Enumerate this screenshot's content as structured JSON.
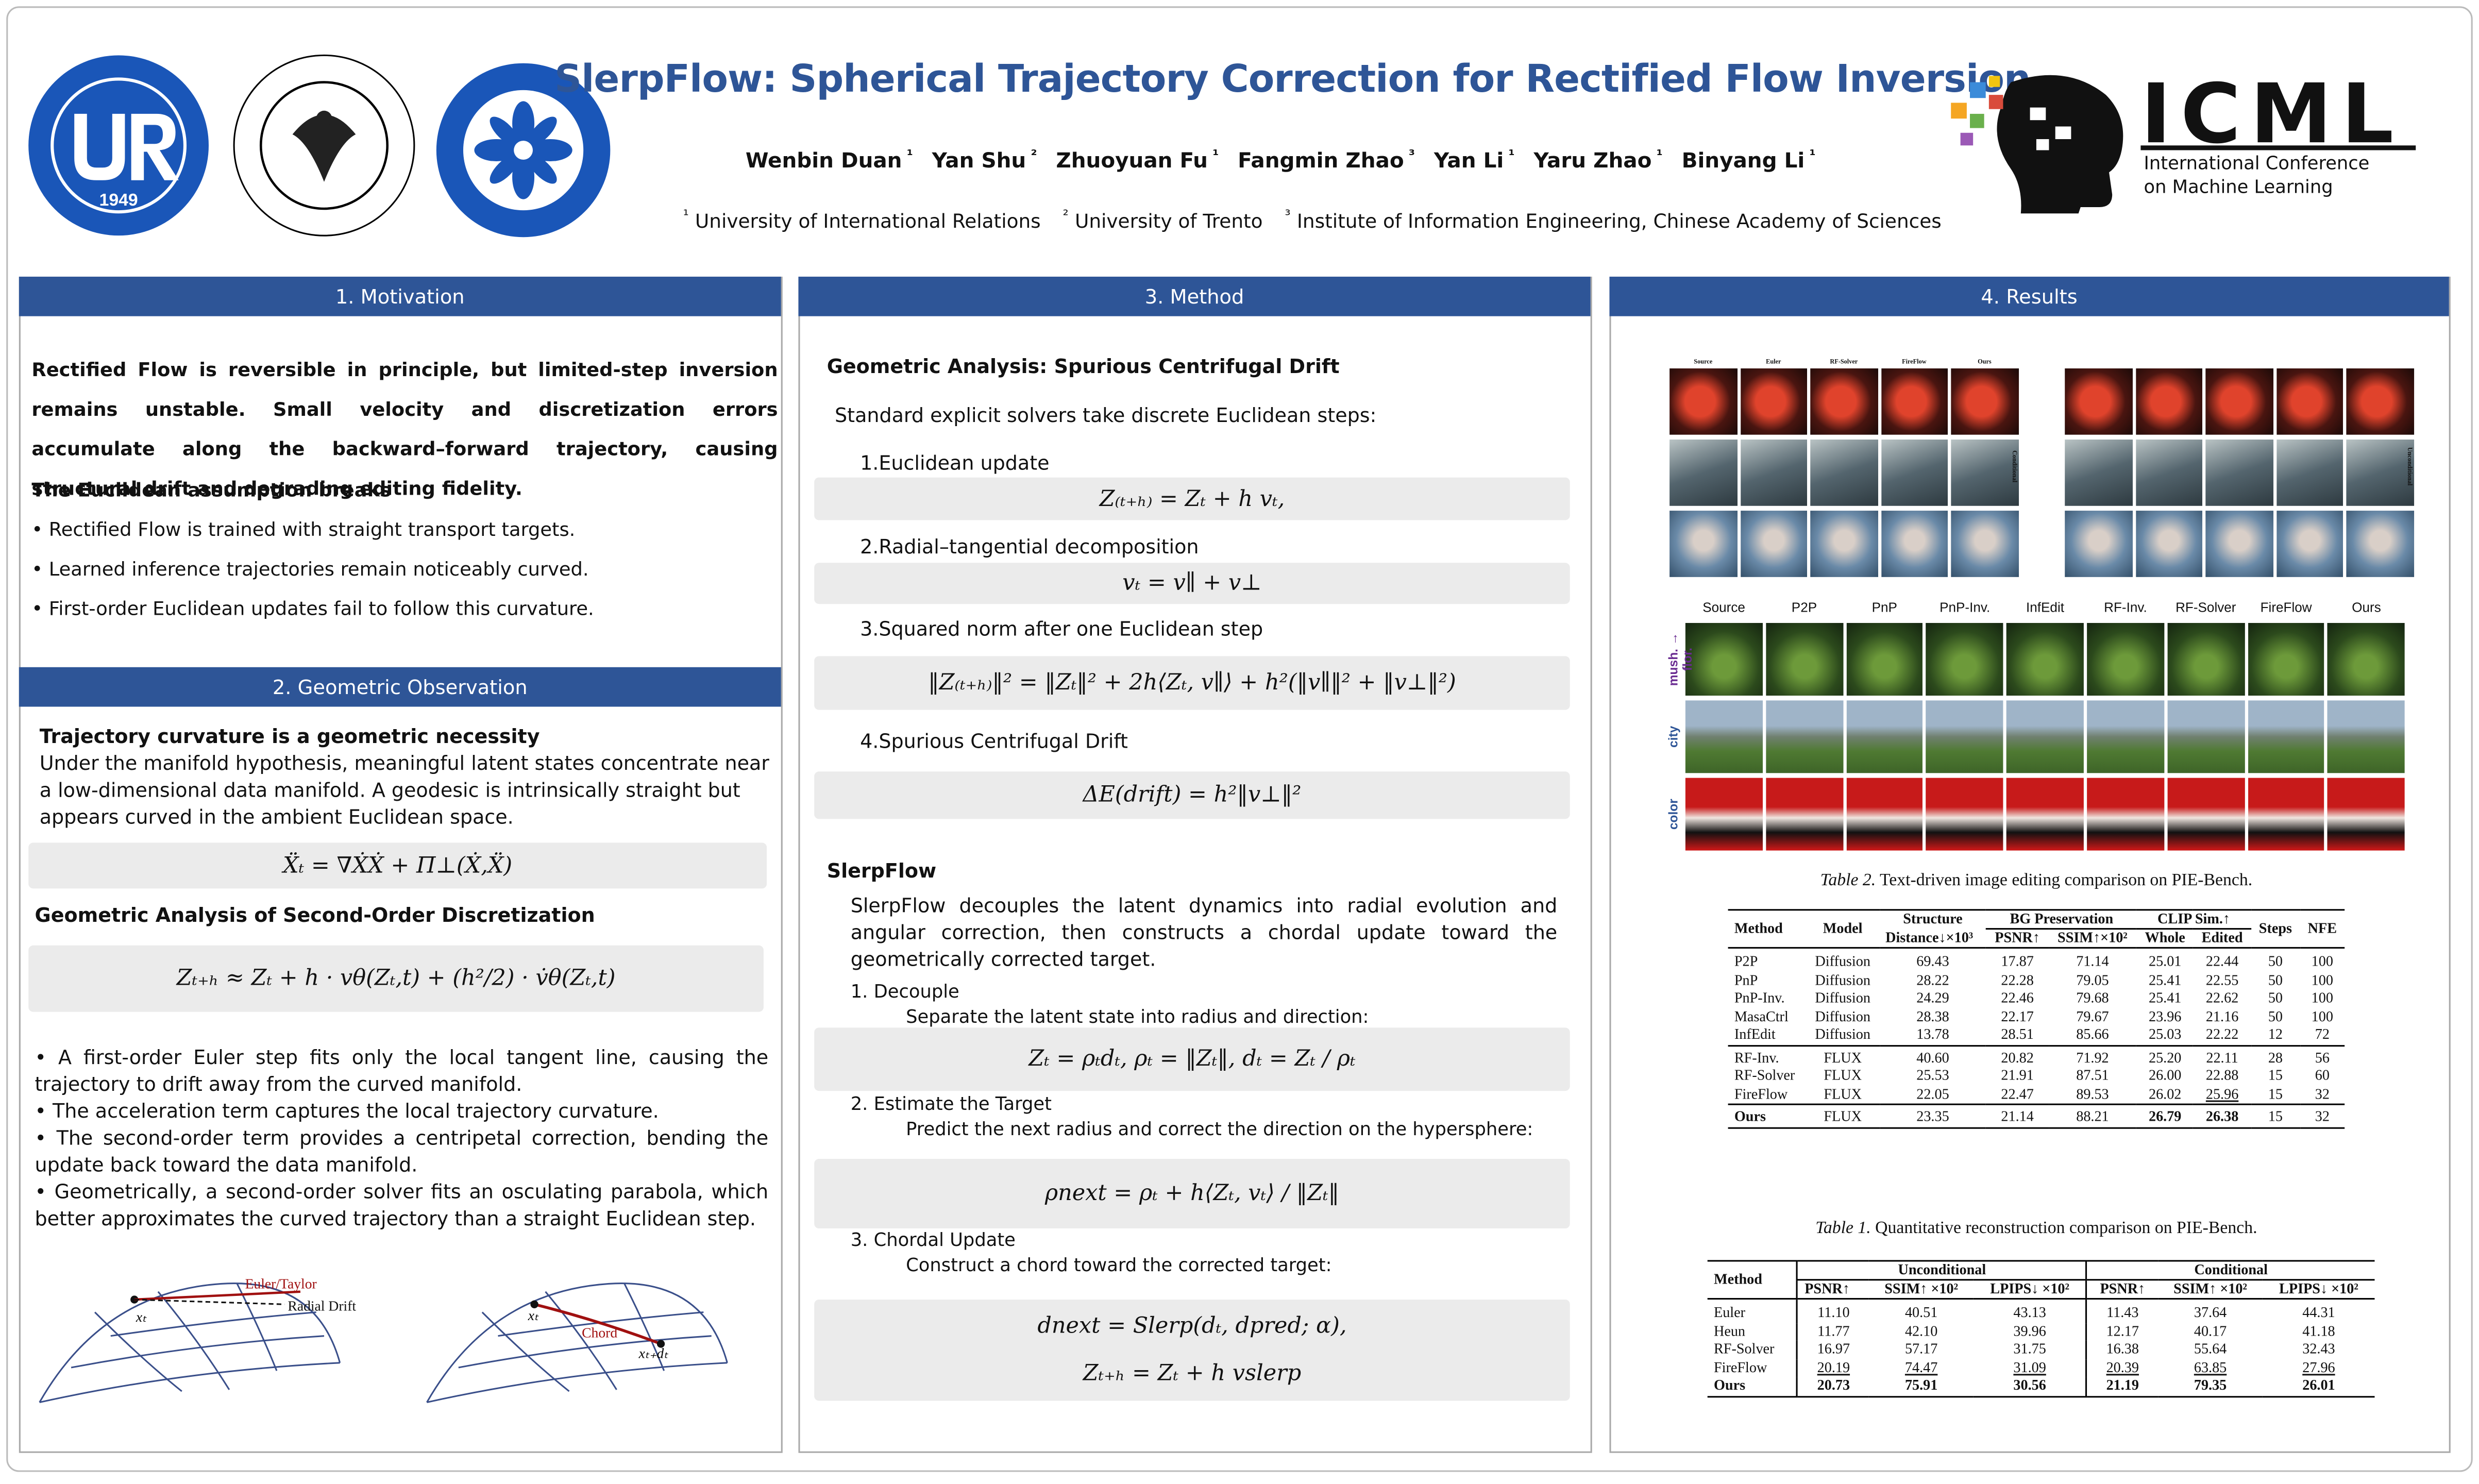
{
  "header": {
    "title": "SlerpFlow: Spherical Trajectory Correction for Rectified Flow Inversion",
    "authors": [
      {
        "name": "Wenbin Duan",
        "sup": "¹"
      },
      {
        "name": "Yan Shu",
        "sup": "²"
      },
      {
        "name": "Zhuoyuan Fu",
        "sup": "¹"
      },
      {
        "name": "Fangmin Zhao",
        "sup": "³"
      },
      {
        "name": "Yan Li",
        "sup": "¹"
      },
      {
        "name": "Yaru Zhao",
        "sup": "¹"
      },
      {
        "name": "Binyang Li",
        "sup": "¹"
      }
    ],
    "affiliations": [
      {
        "sup": "¹",
        "name": "University of International Relations"
      },
      {
        "sup": "²",
        "name": "University of Trento"
      },
      {
        "sup": "³",
        "name": "Institute of Information Engineering, Chinese Academy of Sciences"
      }
    ],
    "logo_year": "1949",
    "conference": {
      "name": "ICML",
      "line1": "International Conference",
      "line2": "on Machine Learning"
    }
  },
  "motivation": {
    "title": "1. Motivation",
    "intro": "Rectified Flow is reversible in principle, but limited-step inversion remains unstable. Small velocity and discretization errors accumulate along the backward–forward trajectory, causing structural drift and degrading editing fidelity.",
    "subtitle": "The Euclidean assumption breaks",
    "bullets": [
      "• Rectified Flow is trained with straight transport targets.",
      "• Learned inference trajectories remain noticeably curved.",
      "• First-order Euclidean updates fail to follow this curvature."
    ]
  },
  "observation": {
    "title": "2. Geometric Observation",
    "heading1": "Trajectory curvature is a geometric necessity",
    "text1": "Under the manifold hypothesis, meaningful latent states concentrate near a low-dimensional data manifold. A geodesic is intrinsically straight but appears curved in the ambient Euclidean space.",
    "eq1": "Ẍₜ = ∇ẊẊ + Π⊥(Ẋ,Ẍ)",
    "heading2": "Geometric Analysis of Second-Order Discretization",
    "eq2": "Zₜ₊ₕ ≈ Zₜ + h · vθ(Zₜ,t) + (h²/2) · v̇θ(Zₜ,t)",
    "bullets": [
      "• A first-order Euler step fits only the local tangent line, causing the trajectory to drift away from the curved manifold.",
      "• The acceleration term captures the local trajectory curvature.",
      "• The second-order term provides a centripetal correction, bending the update back toward the data manifold.",
      "• Geometrically, a second-order solver fits an osculating parabola, which better approximates the curved trajectory than a straight Euclidean step."
    ],
    "figure": {
      "euler": "Euler/Taylor",
      "radial": "Radial Drift",
      "xt": "xₜ",
      "chord": "Chord",
      "xtdt": "xₜ₊dₜ",
      "xt2": "xₜ"
    }
  },
  "method": {
    "title": "3. Method",
    "heading1": "Geometric Analysis: Spurious Centrifugal Drift",
    "intro": "Standard explicit solvers take discrete Euclidean steps:",
    "steps": [
      {
        "label": "1.Euclidean update",
        "eq": "Z₍ₜ₊ₕ₎ = Zₜ + h vₜ,"
      },
      {
        "label": "2.Radial–tangential decomposition",
        "eq": "vₜ = v∥ + v⊥"
      },
      {
        "label": "3.Squared norm after one Euclidean step",
        "eq": "‖Z₍ₜ₊ₕ₎‖² = ‖Zₜ‖² + 2h⟨Zₜ, v∥⟩ + h²(‖v∥‖² + ‖v⊥‖²)"
      },
      {
        "label": "4.Spurious Centrifugal Drift",
        "eq": "ΔE(drift) = h²‖v⊥‖²"
      }
    ],
    "heading2": "SlerpFlow",
    "text2": "SlerpFlow decouples the latent dynamics into radial evolution and angular correction, then constructs a chordal update toward the geometrically corrected target.",
    "parts": [
      {
        "label": "1. Decouple",
        "text": "Separate the latent state into radius and direction:",
        "eq": "Zₜ = ρₜdₜ,  ρₜ = ‖Zₜ‖,  dₜ = Zₜ / ρₜ"
      },
      {
        "label": "2. Estimate the Target",
        "text": "Predict the next radius and correct the direction on the hypersphere:",
        "eq": "ρnext = ρₜ + h⟨Zₜ, vₜ⟩ / ‖Zₜ‖"
      },
      {
        "label": "3. Chordal Update",
        "text": "Construct a chord toward the corrected target:",
        "eq": "dnext = Slerp(dₜ, dpred; α),",
        "eq2": "Zₜ₊ₕ = Zₜ + h vslerp"
      }
    ]
  },
  "results": {
    "title": "4. Results",
    "grid1_columns": [
      "Source",
      "Euler",
      "RF-Solver",
      "FireFlow",
      "Ours"
    ],
    "grid1_side": [
      "Conditional",
      "Unconditional"
    ],
    "grid2_columns": [
      "Source",
      "P2P",
      "PnP",
      "PnP-Inv.",
      "InfEdit",
      "RF-Inv.",
      "RF-Solver",
      "FireFlow",
      "Ours"
    ],
    "grid2_rows": [
      "mush. → flor.",
      "city",
      "color"
    ],
    "table2": {
      "caption_label": "Table 2.",
      "caption": "Text-driven image editing comparison on PIE-Bench.",
      "header_top": [
        "Method",
        "Model",
        "Structure",
        "BG Preservation",
        "CLIP Sim.↑",
        "Steps",
        "NFE"
      ],
      "header_sub": [
        "Distance↓×10³",
        "PSNR↑",
        "SSIM↑×10²",
        "Whole",
        "Edited"
      ],
      "rows": [
        [
          "P2P",
          "Diffusion",
          "69.43",
          "17.87",
          "71.14",
          "25.01",
          "22.44",
          "50",
          "100"
        ],
        [
          "PnP",
          "Diffusion",
          "28.22",
          "22.28",
          "79.05",
          "25.41",
          "22.55",
          "50",
          "100"
        ],
        [
          "PnP-Inv.",
          "Diffusion",
          "24.29",
          "22.46",
          "79.68",
          "25.41",
          "22.62",
          "50",
          "100"
        ],
        [
          "MasaCtrl",
          "Diffusion",
          "28.38",
          "22.17",
          "79.67",
          "23.96",
          "21.16",
          "50",
          "100"
        ],
        [
          "InfEdit",
          "Diffusion",
          "13.78",
          "28.51",
          "85.66",
          "25.03",
          "22.22",
          "12",
          "72"
        ],
        [
          "RF-Inv.",
          "FLUX",
          "40.60",
          "20.82",
          "71.92",
          "25.20",
          "22.11",
          "28",
          "56"
        ],
        [
          "RF-Solver",
          "FLUX",
          "25.53",
          "21.91",
          "87.51",
          "26.00",
          "22.88",
          "15",
          "60"
        ],
        [
          "FireFlow",
          "FLUX",
          "22.05",
          "22.47",
          "89.53",
          "26.02",
          "25.96",
          "15",
          "32"
        ],
        [
          "Ours",
          "FLUX",
          "23.35",
          "21.14",
          "88.21",
          "26.79",
          "26.38",
          "15",
          "32"
        ]
      ]
    },
    "table1": {
      "caption_label": "Table 1.",
      "caption": "Quantitative reconstruction comparison on PIE-Bench.",
      "header_top": [
        "Method",
        "Unconditional",
        "Conditional"
      ],
      "header_sub": [
        "PSNR↑",
        "SSIM↑ ×10²",
        "LPIPS↓ ×10²",
        "PSNR↑",
        "SSIM↑ ×10²",
        "LPIPS↓ ×10²"
      ],
      "rows": [
        [
          "Euler",
          "11.10",
          "40.51",
          "43.13",
          "11.43",
          "37.64",
          "44.31"
        ],
        [
          "Heun",
          "11.77",
          "42.10",
          "39.96",
          "12.17",
          "40.17",
          "41.18"
        ],
        [
          "RF-Solver",
          "16.97",
          "57.17",
          "31.75",
          "16.38",
          "55.64",
          "32.43"
        ],
        [
          "FireFlow",
          "20.19",
          "74.47",
          "31.09",
          "20.39",
          "63.85",
          "27.96"
        ],
        [
          "Ours",
          "20.73",
          "75.91",
          "30.56",
          "21.19",
          "79.35",
          "26.01"
        ]
      ]
    }
  }
}
